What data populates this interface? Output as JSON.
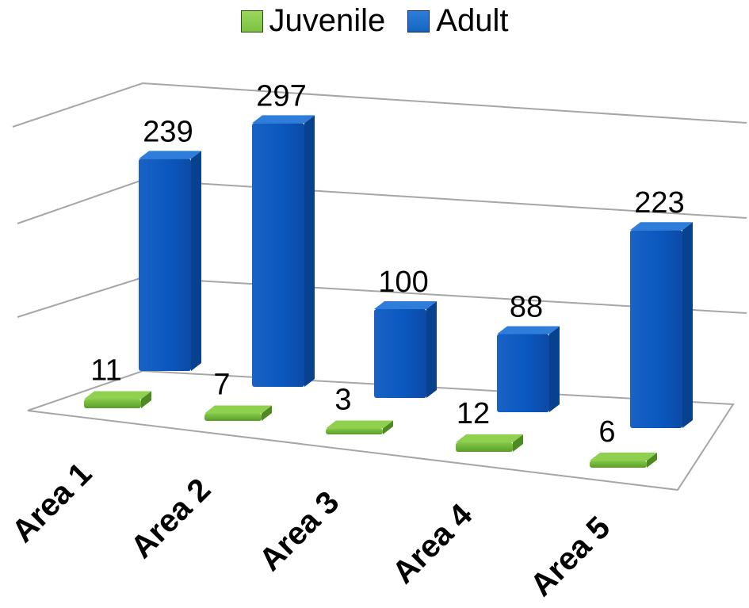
{
  "chart_data": {
    "type": "bar",
    "categories": [
      "Area 1",
      "Area 2",
      "Area 3",
      "Area 4",
      "Area 5"
    ],
    "series": [
      {
        "name": "Juvenile",
        "values": [
          11,
          7,
          3,
          12,
          6
        ],
        "color": "#7cc242"
      },
      {
        "name": "Adult",
        "values": [
          239,
          297,
          100,
          88,
          223
        ],
        "color": "#1565c0"
      }
    ],
    "title": "",
    "xlabel": "",
    "ylabel": "",
    "grid": true,
    "legend_position": "top",
    "style": "3d-columns"
  }
}
